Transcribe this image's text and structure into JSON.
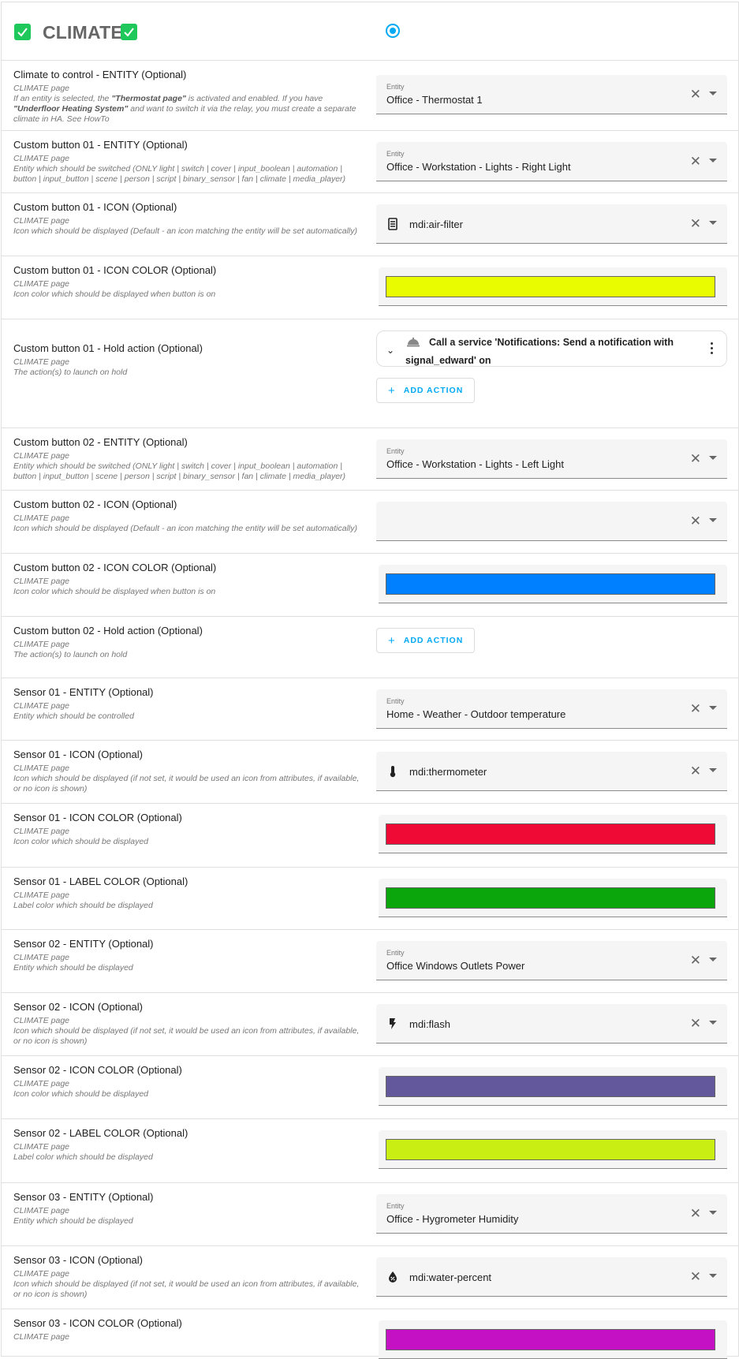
{
  "header": {
    "title": "CLIMATE",
    "radio_selected": true,
    "checkbox_color": "#1fc85a",
    "accent": "#03a9f4"
  },
  "field_label_entity": "Entity",
  "add_action_label": "ADD ACTION",
  "rows": [
    {
      "title": "Climate to control - ENTITY (Optional)",
      "page": "CLIMATE page",
      "desc": [
        {
          "t": "If an entity is selected, the "
        },
        {
          "t": "\"Thermostat page\"",
          "b": true
        },
        {
          "t": " is activated and enabled. If you have "
        },
        {
          "t": "\"Underfloor Heating System\"",
          "b": true
        },
        {
          "t": " and want to switch it via the relay, you must create a separate climate in HA. See HowTo"
        }
      ],
      "type": "entity",
      "label": "Entity",
      "value": "Office - Thermostat 1"
    },
    {
      "title": "Custom button 01 - ENTITY (Optional)",
      "page": "CLIMATE page",
      "desc": [
        {
          "t": "Entity which should be switched (ONLY light | switch | cover | input_boolean | automation | button | input_button | scene | person | script | binary_sensor | fan | climate | media_player)"
        }
      ],
      "type": "entity",
      "label": "Entity",
      "value": "Office - Workstation - Lights - Right Light"
    },
    {
      "title": "Custom button 01 - ICON (Optional)",
      "page": "CLIMATE page",
      "desc": [
        {
          "t": "Icon which should be displayed (Default - an icon matching the entity will be set automatically)"
        }
      ],
      "type": "icon",
      "icon": "air-filter-icon",
      "value": "mdi:air-filter"
    },
    {
      "title": "Custom button 01 - ICON COLOR (Optional)",
      "page": "CLIMATE page",
      "desc": [
        {
          "t": "Icon color which should be displayed when button is on"
        }
      ],
      "type": "color",
      "color": "#e9fc00"
    },
    {
      "title": "Custom button 01 - Hold action (Optional)",
      "page": "CLIMATE page",
      "desc": [
        {
          "t": "The action(s) to launch on hold"
        }
      ],
      "type": "action",
      "action_text": "Call a service 'Notifications: Send a notification with signal_edward' on",
      "action_icon": "bell-icon"
    },
    {
      "title": "Custom button 02 - ENTITY (Optional)",
      "page": "CLIMATE page",
      "desc": [
        {
          "t": "Entity which should be switched (ONLY light | switch | cover | input_boolean | automation | button | input_button | scene | person | script | binary_sensor | fan | climate | media_player)"
        }
      ],
      "type": "entity",
      "label": "Entity",
      "value": "Office - Workstation - Lights - Left Light"
    },
    {
      "title": "Custom button 02 - ICON (Optional)",
      "page": "CLIMATE page",
      "desc": [
        {
          "t": "Icon which should be displayed (Default - an icon matching the entity will be set automatically)"
        }
      ],
      "type": "icon",
      "icon": "",
      "value": ""
    },
    {
      "title": "Custom button 02 - ICON COLOR (Optional)",
      "page": "CLIMATE page",
      "desc": [
        {
          "t": "Icon color which should be displayed when button is on"
        }
      ],
      "type": "color",
      "color": "#0080ff"
    },
    {
      "title": "Custom button 02 - Hold action (Optional)",
      "page": "CLIMATE page",
      "desc": [
        {
          "t": "The action(s) to launch on hold"
        }
      ],
      "type": "addonly"
    },
    {
      "title": "Sensor 01 - ENTITY (Optional)",
      "page": "CLIMATE page",
      "desc": [
        {
          "t": "Entity which should be controlled"
        }
      ],
      "type": "entity",
      "label": "Entity",
      "value": "Home - Weather - Outdoor temperature"
    },
    {
      "title": "Sensor 01 - ICON (Optional)",
      "page": "CLIMATE page",
      "desc": [
        {
          "t": "Icon which should be displayed (if not set, it would be used an icon from attributes, if available, or no icon is shown)"
        }
      ],
      "type": "icon",
      "icon": "thermometer-icon",
      "value": "mdi:thermometer"
    },
    {
      "title": "Sensor 01 - ICON COLOR (Optional)",
      "page": "CLIMATE page",
      "desc": [
        {
          "t": "Icon color which should be displayed"
        }
      ],
      "type": "color",
      "color": "#ef0a36"
    },
    {
      "title": "Sensor 01 - LABEL COLOR (Optional)",
      "page": "CLIMATE page",
      "desc": [
        {
          "t": "Label color which should be displayed"
        }
      ],
      "type": "color",
      "color": "#0aa60c"
    },
    {
      "title": "Sensor 02 - ENTITY (Optional)",
      "page": "CLIMATE page",
      "desc": [
        {
          "t": "Entity which should be displayed"
        }
      ],
      "type": "entity",
      "label": "Entity",
      "value": "Office Windows Outlets Power"
    },
    {
      "title": "Sensor 02 - ICON (Optional)",
      "page": "CLIMATE page",
      "desc": [
        {
          "t": "Icon which should be displayed (if not set, it would be used an icon from attributes, if available, or no icon is shown)"
        }
      ],
      "type": "icon",
      "icon": "flash-icon",
      "value": "mdi:flash"
    },
    {
      "title": "Sensor 02 - ICON COLOR (Optional)",
      "page": "CLIMATE page",
      "desc": [
        {
          "t": "Icon color which should be displayed"
        }
      ],
      "type": "color",
      "color": "#63589b"
    },
    {
      "title": "Sensor 02 - LABEL COLOR (Optional)",
      "page": "CLIMATE page",
      "desc": [
        {
          "t": "Label color which should be displayed"
        }
      ],
      "type": "color",
      "color": "#c8ee14"
    },
    {
      "title": "Sensor 03 - ENTITY (Optional)",
      "page": "CLIMATE page",
      "desc": [
        {
          "t": "Entity which should be displayed"
        }
      ],
      "type": "entity",
      "label": "Entity",
      "value": "Office - Hygrometer Humidity"
    },
    {
      "title": "Sensor 03 - ICON (Optional)",
      "page": "CLIMATE page",
      "desc": [
        {
          "t": "Icon which should be displayed (if not set, it would be used an icon from attributes, if available, or no icon is shown)"
        }
      ],
      "type": "icon",
      "icon": "water-percent-icon",
      "value": "mdi:water-percent"
    },
    {
      "title": "Sensor 03 - ICON COLOR (Optional)",
      "page": "CLIMATE page",
      "desc": [],
      "type": "color",
      "color": "#c411c4"
    }
  ]
}
